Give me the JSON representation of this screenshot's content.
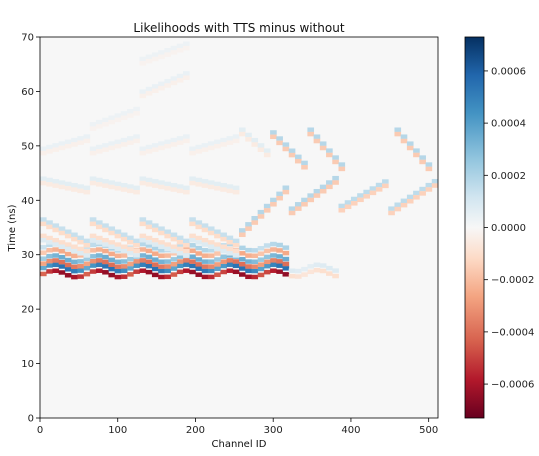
{
  "chart_data": {
    "type": "heatmap",
    "title": "Likelihoods with TTS minus without",
    "xlabel": "Channel ID",
    "ylabel": "Time (ns)",
    "xlim": [
      0,
      512
    ],
    "ylim": [
      0,
      70
    ],
    "x_ticks": [
      "0",
      "100",
      "200",
      "300",
      "400",
      "500"
    ],
    "y_ticks": [
      "0",
      "10",
      "20",
      "30",
      "40",
      "50",
      "60",
      "70"
    ],
    "colorbar": {
      "colormap": "RdBu",
      "range": [
        -0.00073,
        0.00073
      ],
      "ticks": [
        "0.0006",
        "0.0004",
        "0.0002",
        "0.0000",
        "−0.0002",
        "−0.0004",
        "−0.0006"
      ],
      "tick_values": [
        0.0006,
        0.0004,
        0.0002,
        0.0,
        -0.0002,
        -0.0004,
        -0.0006
      ]
    },
    "background_color": "#f7f7f7",
    "features": [
      {
        "channels": [
          0,
          320
        ],
        "t": 26.5,
        "v": -0.00065
      },
      {
        "channels": [
          0,
          320
        ],
        "t": 27.6,
        "v": 0.00055
      },
      {
        "channels": [
          0,
          320
        ],
        "t": 28.4,
        "v": -0.0004
      },
      {
        "channels": [
          0,
          320
        ],
        "t": 29.3,
        "v": 0.00035
      },
      {
        "channels": [
          0,
          320
        ],
        "t": 30.4,
        "v": -0.00025
      },
      {
        "channels": [
          0,
          320
        ],
        "t": 31.4,
        "v": 0.0002
      },
      {
        "channels": [
          320,
          384
        ],
        "t": 26.6,
        "v": -0.0001
      },
      {
        "channels": [
          320,
          384
        ],
        "t": 27.6,
        "v": 8e-05
      }
    ]
  }
}
